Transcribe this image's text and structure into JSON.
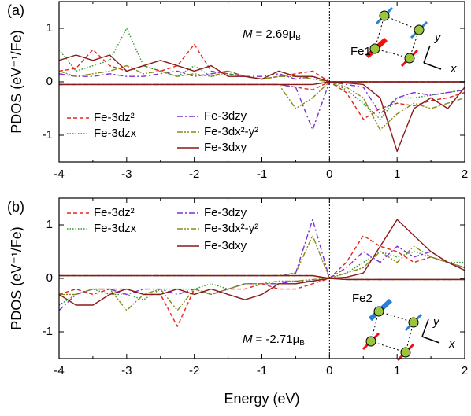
{
  "chart_data": [
    {
      "type": "line",
      "panel_label": "(a)",
      "ylabel": "PDOS (eV⁻¹/Fe)",
      "x": [
        -4,
        -3.75,
        -3.5,
        -3.25,
        -3,
        -2.75,
        -2.5,
        -2.25,
        -2,
        -1.75,
        -1.5,
        -1.25,
        -1,
        -0.75,
        -0.5,
        -0.25,
        0,
        0.25,
        0.5,
        0.75,
        1,
        1.25,
        1.5,
        1.75,
        2
      ],
      "xlim": [
        -4,
        2
      ],
      "ylim": [
        -1.5,
        1.5
      ],
      "xticks": [
        -4,
        -3,
        -2,
        -1,
        0,
        1,
        2
      ],
      "yticks": [
        -1,
        0,
        1
      ],
      "fermi_level": 0,
      "annotation": {
        "symbol": "M",
        "text": "= 2.69μ",
        "subscript": "B"
      },
      "atom_label": "Fe1",
      "axis_x": "x",
      "axis_y": "y",
      "series": [
        {
          "name": "Fe-3dz²",
          "color": "#e8221c",
          "linestyle": "dashed",
          "spin_up": [
            0.2,
            0.25,
            0.6,
            0.3,
            0.2,
            0.3,
            0.2,
            0.3,
            0.7,
            0.2,
            0.15,
            0.1,
            0.05,
            0.1,
            0.15,
            0.2,
            0,
            0,
            0,
            0,
            0,
            0,
            0,
            0,
            0
          ],
          "spin_down": [
            -0.05,
            -0.05,
            -0.05,
            -0.05,
            -0.05,
            -0.05,
            -0.05,
            -0.05,
            -0.05,
            -0.05,
            -0.05,
            -0.05,
            -0.05,
            -0.05,
            -0.1,
            -0.15,
            0,
            -0.2,
            -0.7,
            -0.5,
            -0.4,
            -0.45,
            -0.35,
            -0.3,
            -0.2
          ]
        },
        {
          "name": "Fe-3dzx",
          "color": "#2a9a2a",
          "linestyle": "dotted",
          "spin_up": [
            0.6,
            0.2,
            0.3,
            0.4,
            1.0,
            0.3,
            0.2,
            0.1,
            0.3,
            0.1,
            0.15,
            0.1,
            0.05,
            0.1,
            0.1,
            0.1,
            0,
            0,
            0,
            0,
            0,
            0,
            0,
            0,
            0
          ],
          "spin_down": [
            -0.05,
            -0.05,
            -0.05,
            -0.05,
            -0.05,
            -0.05,
            -0.05,
            -0.05,
            -0.05,
            -0.05,
            -0.05,
            -0.05,
            -0.05,
            -0.05,
            -0.05,
            -0.05,
            0,
            -0.15,
            -0.4,
            -0.7,
            -0.3,
            -0.3,
            -0.25,
            -0.2,
            -0.15
          ]
        },
        {
          "name": "Fe-3dzy",
          "color": "#7b2fd6",
          "linestyle": "dashdot",
          "spin_up": [
            0.15,
            0.1,
            0.1,
            0.15,
            0.1,
            0.1,
            0.15,
            0.2,
            0.1,
            0.15,
            0.2,
            0.1,
            0.1,
            0.15,
            0.05,
            0.1,
            0,
            0,
            0,
            0,
            0,
            0,
            0,
            0,
            0
          ],
          "spin_down": [
            -0.05,
            -0.05,
            -0.05,
            -0.05,
            -0.05,
            -0.05,
            -0.05,
            -0.05,
            -0.05,
            -0.05,
            -0.05,
            -0.05,
            -0.05,
            -0.05,
            -0.1,
            -0.9,
            0,
            -0.05,
            -0.1,
            -0.6,
            -0.3,
            -0.2,
            -0.25,
            -0.2,
            -0.15
          ]
        },
        {
          "name": "Fe-3dx²-y²",
          "color": "#8a8a1a",
          "linestyle": "dashdotdot",
          "spin_up": [
            0.2,
            0.1,
            0.15,
            0.2,
            0.3,
            0.15,
            0.2,
            0.1,
            0.15,
            0.1,
            0.2,
            0.1,
            0.05,
            0.1,
            0.1,
            0.05,
            0,
            0,
            0,
            0,
            0,
            0,
            0,
            0,
            0
          ],
          "spin_down": [
            -0.05,
            -0.05,
            -0.05,
            -0.05,
            -0.05,
            -0.05,
            -0.05,
            -0.05,
            -0.05,
            -0.05,
            -0.05,
            -0.05,
            -0.05,
            -0.05,
            -0.5,
            -0.3,
            0,
            -0.1,
            -0.3,
            -0.9,
            -0.6,
            -0.4,
            -0.5,
            -0.4,
            -0.3
          ]
        },
        {
          "name": "Fe-3dxy",
          "color": "#8b1a1a",
          "linestyle": "solid",
          "spin_up": [
            0.4,
            0.5,
            0.4,
            0.5,
            0.2,
            0.3,
            0.4,
            0.3,
            0.2,
            0.3,
            0.1,
            0.1,
            0.05,
            0.2,
            0.1,
            0.1,
            0,
            0,
            0,
            0,
            0,
            0,
            0,
            0,
            0
          ],
          "spin_down": [
            -0.05,
            -0.05,
            -0.05,
            -0.05,
            -0.05,
            -0.05,
            -0.05,
            -0.05,
            -0.05,
            -0.05,
            -0.05,
            -0.05,
            -0.05,
            -0.05,
            -0.05,
            -0.05,
            0,
            -0.02,
            -0.05,
            -0.3,
            -1.3,
            -0.5,
            -0.3,
            -0.5,
            -0.1
          ]
        }
      ]
    },
    {
      "type": "line",
      "panel_label": "(b)",
      "ylabel": "PDOS (eV⁻¹/Fe)",
      "xlabel": "Energy (eV)",
      "x": [
        -4,
        -3.75,
        -3.5,
        -3.25,
        -3,
        -2.75,
        -2.5,
        -2.25,
        -2,
        -1.75,
        -1.5,
        -1.25,
        -1,
        -0.75,
        -0.5,
        -0.25,
        0,
        0.25,
        0.5,
        0.75,
        1,
        1.25,
        1.5,
        1.75,
        2
      ],
      "xlim": [
        -4,
        2
      ],
      "ylim": [
        -1.5,
        1.5
      ],
      "xticks": [
        -4,
        -3,
        -2,
        -1,
        0,
        1,
        2
      ],
      "yticks": [
        -1,
        0,
        1
      ],
      "fermi_level": 0,
      "annotation": {
        "symbol": "M",
        "text": "= -2.71μ",
        "subscript": "B"
      },
      "atom_label": "Fe2",
      "axis_x": "x",
      "axis_y": "y",
      "series": [
        {
          "name": "Fe-3dz²",
          "color": "#e8221c",
          "linestyle": "dashed",
          "spin_up": [
            0.05,
            0.05,
            0.05,
            0.05,
            0.05,
            0.05,
            0.05,
            0.05,
            0.05,
            0.05,
            0.05,
            0.05,
            0.05,
            0.05,
            0.05,
            0.05,
            0,
            0.3,
            0.8,
            0.6,
            0.5,
            0.3,
            0.4,
            0.3,
            0.2
          ],
          "spin_down": [
            -0.3,
            -0.2,
            -0.3,
            -0.2,
            -0.2,
            -0.3,
            -0.3,
            -0.9,
            -0.2,
            -0.3,
            -0.2,
            -0.2,
            -0.1,
            -0.2,
            -0.2,
            -0.1,
            0,
            -0.02,
            -0.02,
            -0.02,
            -0.02,
            -0.02,
            -0.02,
            -0.02,
            -0.02
          ]
        },
        {
          "name": "Fe-3dzx",
          "color": "#2a9a2a",
          "linestyle": "dotted",
          "spin_up": [
            0.05,
            0.05,
            0.05,
            0.05,
            0.05,
            0.05,
            0.05,
            0.05,
            0.05,
            0.05,
            0.05,
            0.05,
            0.05,
            0.05,
            0.05,
            0.05,
            0,
            0.1,
            0.3,
            0.5,
            0.4,
            0.5,
            0.4,
            0.3,
            0.3
          ],
          "spin_down": [
            -0.5,
            -0.3,
            -0.2,
            -0.3,
            -0.3,
            -0.4,
            -0.2,
            -0.2,
            -0.2,
            -0.1,
            -0.2,
            -0.1,
            -0.1,
            -0.1,
            -0.1,
            -0.05,
            0,
            -0.02,
            -0.02,
            -0.02,
            -0.02,
            -0.02,
            -0.02,
            -0.02,
            -0.02
          ]
        },
        {
          "name": "Fe-3dzy",
          "color": "#7b2fd6",
          "linestyle": "dashdot",
          "spin_up": [
            0.05,
            0.05,
            0.05,
            0.05,
            0.05,
            0.05,
            0.05,
            0.05,
            0.05,
            0.05,
            0.05,
            0.05,
            0.05,
            0.05,
            0.1,
            1.1,
            0,
            0.2,
            0.5,
            0.3,
            0.6,
            0.4,
            0.5,
            0.3,
            0.2
          ],
          "spin_down": [
            -0.6,
            -0.3,
            -0.2,
            -0.2,
            -0.3,
            -0.2,
            -0.2,
            -0.3,
            -0.2,
            -0.3,
            -0.2,
            -0.1,
            -0.1,
            -0.1,
            -0.05,
            -0.05,
            0,
            -0.02,
            -0.02,
            -0.02,
            -0.02,
            -0.02,
            -0.02,
            -0.02,
            -0.02
          ]
        },
        {
          "name": "Fe-3dx²-y²",
          "color": "#8a8a1a",
          "linestyle": "dashdotdot",
          "spin_up": [
            0.05,
            0.05,
            0.05,
            0.05,
            0.05,
            0.05,
            0.05,
            0.05,
            0.05,
            0.05,
            0.05,
            0.05,
            0.05,
            0.05,
            0.1,
            0.8,
            0,
            0.1,
            0.2,
            0.5,
            0.3,
            0.6,
            0.4,
            0.3,
            0.2
          ],
          "spin_down": [
            -0.3,
            -0.3,
            -0.2,
            -0.2,
            -0.6,
            -0.3,
            -0.2,
            -0.6,
            -0.2,
            -0.3,
            -0.2,
            -0.1,
            -0.1,
            -0.05,
            -0.05,
            -0.02,
            0,
            -0.02,
            -0.02,
            -0.02,
            -0.02,
            -0.02,
            -0.02,
            -0.02,
            -0.02
          ]
        },
        {
          "name": "Fe-3dxy",
          "color": "#8b1a1a",
          "linestyle": "solid",
          "spin_up": [
            0.05,
            0.05,
            0.05,
            0.05,
            0.05,
            0.05,
            0.05,
            0.05,
            0.05,
            0.05,
            0.05,
            0.05,
            0.05,
            0.05,
            0.05,
            0.05,
            0,
            0.02,
            0.1,
            0.6,
            1.1,
            0.8,
            0.5,
            0.3,
            0.15
          ],
          "spin_down": [
            -0.3,
            -0.5,
            -0.5,
            -0.3,
            -0.2,
            -0.3,
            -0.3,
            -0.2,
            -0.3,
            -0.2,
            -0.3,
            -0.4,
            -0.3,
            -0.1,
            -0.1,
            -0.05,
            0,
            -0.02,
            -0.02,
            -0.02,
            -0.02,
            -0.02,
            -0.02,
            -0.02,
            -0.02
          ]
        }
      ]
    }
  ]
}
